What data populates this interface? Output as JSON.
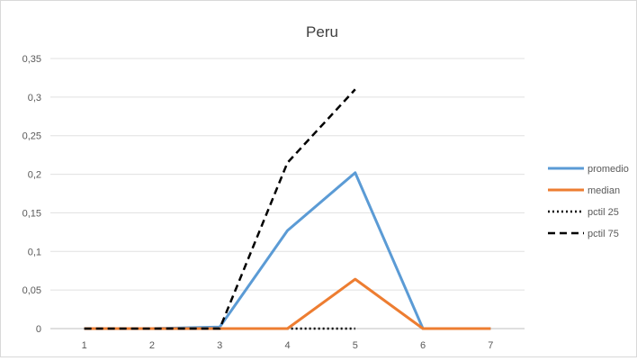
{
  "chart_data": {
    "type": "line",
    "title": "Peru",
    "xlabel": "",
    "ylabel": "",
    "categories": [
      "1",
      "2",
      "3",
      "4",
      "5",
      "6",
      "7"
    ],
    "y_ticks": [
      "0",
      "0,05",
      "0,1",
      "0,15",
      "0,2",
      "0,25",
      "0,3",
      "0,35"
    ],
    "ylim": [
      0,
      0.35
    ],
    "grid": true,
    "legend_position": "right",
    "series": [
      {
        "name": "promedio",
        "color": "#5B9BD5",
        "style": "solid",
        "values": [
          0,
          0,
          0.002,
          0.127,
          0.202,
          0,
          0
        ]
      },
      {
        "name": "median",
        "color": "#ED7D31",
        "style": "solid",
        "values": [
          0,
          0,
          0,
          0,
          0.064,
          0,
          0
        ]
      },
      {
        "name": "pctil 25",
        "color": "#000000",
        "style": "dotted",
        "values": [
          0,
          0,
          0,
          0,
          0,
          null,
          null
        ]
      },
      {
        "name": "pctil 75",
        "color": "#000000",
        "style": "dashed",
        "values": [
          0,
          0,
          0,
          0.215,
          0.31,
          null,
          null
        ]
      }
    ]
  }
}
